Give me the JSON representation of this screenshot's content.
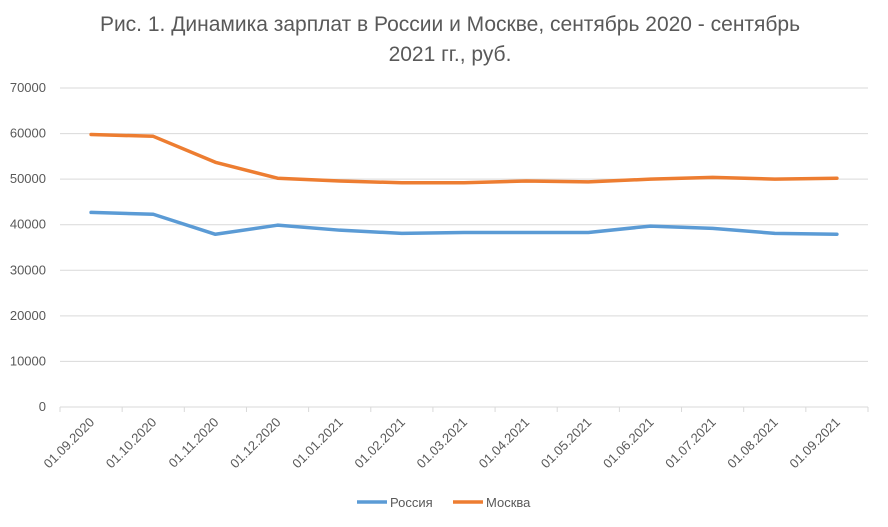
{
  "chart_data": {
    "type": "line",
    "title": "Рис. 1. Динамика зарплат в России и Москве, сентябрь 2020 - сентябрь 2021 гг., руб.",
    "categories": [
      "01.09.2020",
      "01.10.2020",
      "01.11.2020",
      "01.12.2020",
      "01.01.2021",
      "01.02.2021",
      "01.03.2021",
      "01.04.2021",
      "01.05.2021",
      "01.06.2021",
      "01.07.2021",
      "01.08.2021",
      "01.09.2021"
    ],
    "series": [
      {
        "name": "Россия",
        "color": "#5b9bd5",
        "values": [
          42700,
          42300,
          37900,
          39900,
          38800,
          38100,
          38300,
          38300,
          38300,
          39700,
          39200,
          38100,
          37900
        ]
      },
      {
        "name": "Москва",
        "color": "#ed7d31",
        "values": [
          59800,
          59400,
          53700,
          50200,
          49600,
          49200,
          49200,
          49600,
          49400,
          50000,
          50400,
          50000,
          50200
        ]
      }
    ],
    "ylim": [
      0,
      70000
    ],
    "yticks": [
      0,
      10000,
      20000,
      30000,
      40000,
      50000,
      60000,
      70000
    ],
    "grid": true,
    "legend": "bottom"
  }
}
